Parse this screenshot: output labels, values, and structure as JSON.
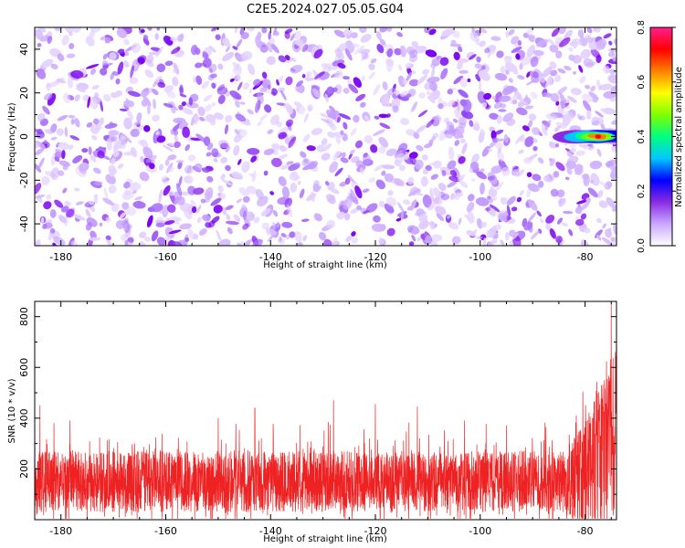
{
  "title": "C2E5.2024.027.05.05.G04",
  "colors": {
    "spectrum_purple": "#7a00f0",
    "snr_red": "#ee2222",
    "colorbar": [
      "#ffffff",
      "#c9a8ff",
      "#8a2be2",
      "#0000ff",
      "#00c8ff",
      "#00ff80",
      "#80ff00",
      "#ffff00",
      "#ff8000",
      "#ff0000",
      "#ff1f8c"
    ]
  },
  "chart_data": [
    {
      "type": "heatmap",
      "title": "C2E5.2024.027.05.05.G04",
      "xlabel": "Height of straight line (km)",
      "ylabel": "Frequency (Hz)",
      "xlim": [
        -185,
        -74
      ],
      "ylim": [
        -50,
        50
      ],
      "x_ticks": [
        -180,
        -160,
        -140,
        -120,
        -100,
        -80
      ],
      "y_ticks": [
        -40,
        -20,
        0,
        20,
        40
      ],
      "colorbar": {
        "label": "Normalized spectral amplitude",
        "range": [
          0,
          0.8
        ],
        "ticks": [
          0.0,
          0.2,
          0.4,
          0.6,
          0.8
        ]
      },
      "background_amplitude_range": [
        0.0,
        0.15
      ],
      "signal": {
        "x_range": [
          -84,
          -74
        ],
        "frequency": 0,
        "frequency_halfwidth": 3,
        "peak_amplitude": 0.75,
        "peak_x": -77.5
      }
    },
    {
      "type": "line",
      "xlabel": "Height of straight line (km)",
      "ylabel": "SNR (10 * v/v)",
      "xlim": [
        -185,
        -74
      ],
      "ylim": [
        0,
        860
      ],
      "x_ticks": [
        -180,
        -160,
        -140,
        -120,
        -100,
        -80
      ],
      "y_ticks": [
        200,
        400,
        600,
        800
      ],
      "baseline_mean": 150,
      "baseline_typical_max": 300,
      "isolated_spikes": [
        {
          "x": -184,
          "y": 450
        },
        {
          "x": -150,
          "y": 400
        },
        {
          "x": -143,
          "y": 440
        },
        {
          "x": -128,
          "y": 470
        },
        {
          "x": -120,
          "y": 455
        },
        {
          "x": -112,
          "y": 445
        },
        {
          "x": -103,
          "y": 390
        },
        {
          "x": -95,
          "y": 370
        }
      ],
      "rise_start_x": -84,
      "end_peak": {
        "x": -75,
        "y": 855
      }
    }
  ]
}
